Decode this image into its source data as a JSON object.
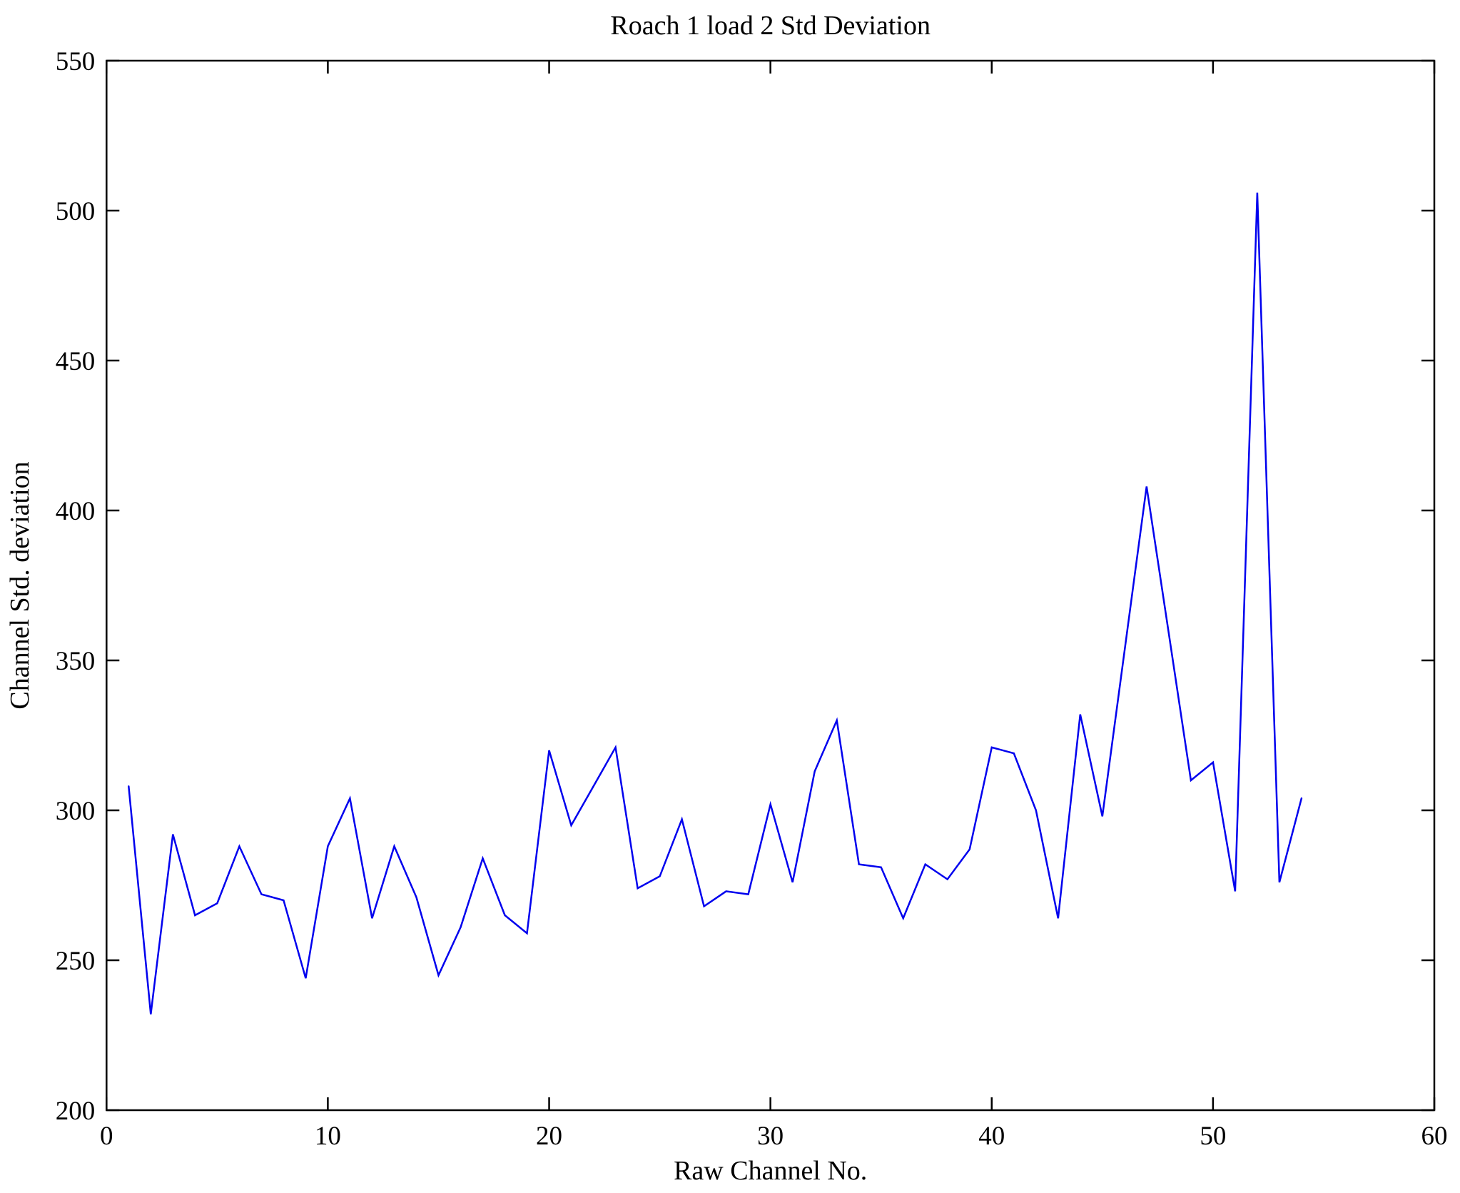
{
  "figure": {
    "background": "#FFFFFF",
    "axis_color": "#000000",
    "line_color": "#0000EE"
  },
  "chart_data": {
    "type": "line",
    "title": "Roach 1 load 2 Std Deviation",
    "xlabel": "Raw Channel No.",
    "ylabel": "Channel Std. deviation",
    "xlim": [
      0,
      60
    ],
    "ylim": [
      200,
      550
    ],
    "x_ticks": [
      0,
      10,
      20,
      30,
      40,
      50,
      60
    ],
    "y_ticks": [
      200,
      250,
      300,
      350,
      400,
      450,
      500,
      550
    ],
    "grid": false,
    "legend_position": "none",
    "series": [
      {
        "name": "channel-std-deviation",
        "color": "#0000EE",
        "x": [
          1,
          2,
          3,
          4,
          5,
          6,
          7,
          8,
          9,
          10,
          11,
          12,
          13,
          14,
          15,
          16,
          17,
          18,
          19,
          20,
          21,
          22,
          23,
          24,
          25,
          26,
          27,
          28,
          29,
          30,
          31,
          32,
          33,
          34,
          35,
          36,
          37,
          38,
          39,
          40,
          41,
          42,
          43,
          44,
          45,
          46,
          47,
          48,
          49,
          50,
          51,
          52,
          53,
          54
        ],
        "values": [
          308,
          232,
          292,
          265,
          269,
          288,
          272,
          270,
          244,
          288,
          304,
          264,
          288,
          271,
          245,
          261,
          284,
          265,
          259,
          320,
          295,
          308,
          321,
          274,
          278,
          297,
          268,
          273,
          272,
          302,
          276,
          313,
          330,
          282,
          281,
          264,
          282,
          277,
          287,
          321,
          319,
          300,
          264,
          332,
          298,
          353,
          408,
          359,
          310,
          316,
          273,
          506,
          276,
          304
        ]
      }
    ]
  }
}
